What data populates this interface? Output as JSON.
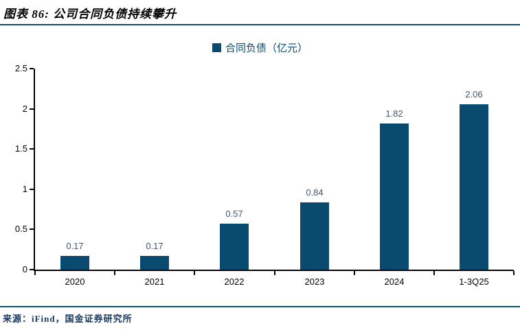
{
  "header": {
    "title": "图表 86: 公司合同负债持续攀升"
  },
  "chart_data": {
    "type": "bar",
    "title": "图表 86: 公司合同负债持续攀升",
    "legend": "合同负债（亿元）",
    "legend_position": "top-center",
    "categories": [
      "2020",
      "2021",
      "2022",
      "2023",
      "2024",
      "1-3Q25"
    ],
    "values": [
      0.17,
      0.17,
      0.57,
      0.84,
      1.82,
      2.06
    ],
    "value_labels": [
      "0.17",
      "0.17",
      "0.57",
      "0.84",
      "1.82",
      "2.06"
    ],
    "xlabel": "",
    "ylabel": "",
    "ylim": [
      0,
      2.5
    ],
    "yticks": [
      0,
      0.5,
      1,
      1.5,
      2,
      2.5
    ],
    "ytick_labels": [
      "0",
      "0.5",
      "1",
      "1.5",
      "2",
      "2.5"
    ],
    "grid": false
  },
  "colors": {
    "bar": "#084B6F",
    "rule": "#0E4C70",
    "legend_text": "#0A4B6E",
    "value_label": "#44546A",
    "axis": "#000000",
    "source_text": "#17375E",
    "title_text": "#000000"
  },
  "footer": {
    "source": "来源：iFind，国金证券研究所"
  }
}
